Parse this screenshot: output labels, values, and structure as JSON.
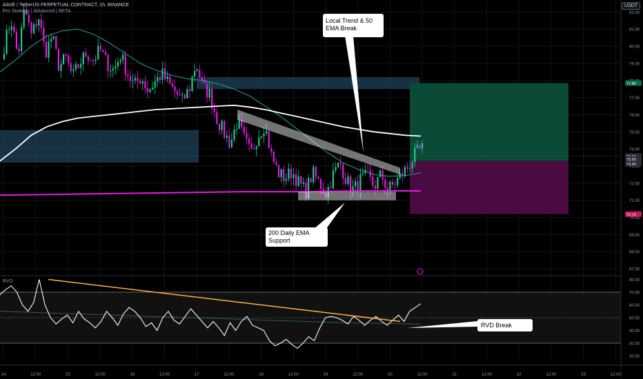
{
  "header": {
    "symbol_line": "AAVE / TetherUS PERPETUAL CONTRACT, 1h, BINANCE",
    "indicator_line": "Pro Strategy | Advanced | BETA",
    "currency": "USDT"
  },
  "rvd_label": "RVD",
  "colors": {
    "bull": "#19d38f",
    "bear": "#e81ce3",
    "ema200": "#ffffff",
    "ema50": "#26a69a",
    "daily200": "#e81ce3",
    "trendline": "#ffb347",
    "zone_blue": "#1e3d52",
    "tp_zone": "#0a4a36",
    "sl_zone": "#4a0a42"
  },
  "chart_data": [
    {
      "type": "candlestick",
      "title": "AAVE / TetherUS PERPETUAL CONTRACT, 1h, BINANCE",
      "x_tick_labels": [
        "14",
        "12:00",
        "15",
        "12:00",
        "16",
        "12:00",
        "17",
        "12:00",
        "18",
        "12:00",
        "19",
        "12:00",
        "20",
        "12:00",
        "21",
        "12:00",
        "22",
        "12:00",
        "23",
        "12:00"
      ],
      "y_tick_labels": [
        "82.00",
        "81.00",
        "80.00",
        "79.00",
        "78.00",
        "77.00",
        "76.00",
        "75.00",
        "74.00",
        "73.00",
        "72.00",
        "71.00",
        "70.00",
        "69.00",
        "68.00",
        "67.00"
      ],
      "ylim": [
        66.6,
        82.7
      ],
      "price_badges": [
        {
          "value": "77.85",
          "color": "#0a6b4e"
        },
        {
          "value": "73.59",
          "color": "#2a2e39"
        },
        {
          "value": "73.50",
          "color": "#2a2e39"
        },
        {
          "value": "73.30",
          "color": "#2a2e39"
        },
        {
          "value": "70.19",
          "color": "#c2185b"
        }
      ],
      "ohlc_path": [
        80.0,
        81.6,
        79.4,
        82.2,
        80.6,
        81.8,
        79.6,
        80.6,
        78.8,
        79.3,
        78.2,
        79.0,
        79.6,
        79.2,
        79.8,
        79.0,
        78.6,
        79.5,
        78.4,
        77.7,
        78.2,
        77.4,
        77.9,
        78.4,
        77.8,
        77.3,
        76.8,
        77.5,
        79.0,
        77.6,
        77.2,
        75.8,
        75.0,
        74.3,
        75.6,
        74.6,
        73.7,
        74.8,
        75.4,
        73.6,
        72.6,
        72.3,
        72.7,
        72.0,
        71.5,
        72.6,
        72.0,
        71.4,
        72.5,
        73.2,
        72.1,
        71.6,
        72.2,
        72.4,
        71.8,
        72.5,
        71.6,
        72.0,
        72.5,
        73.0,
        73.7,
        74.0
      ],
      "ema200": [
        73.3,
        74.0,
        74.8,
        75.3,
        75.6,
        75.8,
        75.9,
        76.0,
        76.1,
        76.2,
        76.3,
        76.35,
        76.4,
        76.45,
        76.5,
        76.55,
        76.45,
        76.3,
        76.1,
        75.9,
        75.7,
        75.5,
        75.3,
        75.15,
        75.0,
        74.9,
        74.8,
        74.75
      ],
      "ema50": [
        78.5,
        79.2,
        80.0,
        80.6,
        80.9,
        81.0,
        80.7,
        80.2,
        79.6,
        79.0,
        78.6,
        78.3,
        78.1,
        78.0,
        77.8,
        77.5,
        77.1,
        76.5,
        75.9,
        75.2,
        74.5,
        73.8,
        73.2,
        72.8,
        72.5,
        72.4,
        72.45,
        72.6
      ],
      "daily_200_ema": [
        71.3,
        71.35,
        71.4,
        71.45,
        71.5,
        71.5,
        71.55,
        71.55
      ],
      "zones": [
        {
          "kind": "supply",
          "top": 78.2,
          "bottom": 77.5
        },
        {
          "kind": "demand",
          "top": 75.1,
          "bottom": 73.2
        },
        {
          "kind": "take-profit",
          "top": 77.85,
          "bottom": 73.3
        },
        {
          "kind": "stop-loss",
          "top": 73.3,
          "bottom": 70.19
        }
      ],
      "support_box": {
        "top": 71.5,
        "bottom": 71.0
      },
      "trend_channel": [
        [
          76.3,
          75.7
        ],
        [
          72.5,
          72.9
        ]
      ],
      "annotations": [
        "Local Trend & 50\nEMA Break",
        "200 Daily EMA\nSupport"
      ]
    },
    {
      "type": "line",
      "title": "RVD",
      "y_tick_labels": [
        "80.00",
        "70.00",
        "60.00",
        "50.00",
        "40.00",
        "30.00",
        "20.00"
      ],
      "ylim": [
        17,
        83
      ],
      "levels": [
        70,
        50,
        30
      ],
      "rvd": [
        68,
        72,
        75,
        70,
        60,
        55,
        62,
        80,
        60,
        50,
        45,
        49,
        52,
        46,
        55,
        49,
        46,
        42,
        47,
        55,
        50,
        44,
        53,
        58,
        55,
        50,
        43,
        46,
        40,
        50,
        55,
        48,
        45,
        51,
        57,
        52,
        47,
        42,
        47,
        42,
        36,
        46,
        40,
        47,
        51,
        44,
        42,
        40,
        32,
        28,
        30,
        33,
        29,
        26,
        30,
        35,
        32,
        42,
        50,
        51,
        50,
        48,
        45,
        51,
        48,
        44,
        48,
        51,
        47,
        44,
        48,
        52,
        47,
        55,
        58,
        61
      ],
      "rvd_ma": [
        55,
        54,
        53,
        52,
        51,
        50,
        49,
        48,
        47,
        46,
        45.5,
        45
      ],
      "trendline": [
        80,
        47
      ],
      "annotations": [
        "RVD Break"
      ]
    }
  ]
}
